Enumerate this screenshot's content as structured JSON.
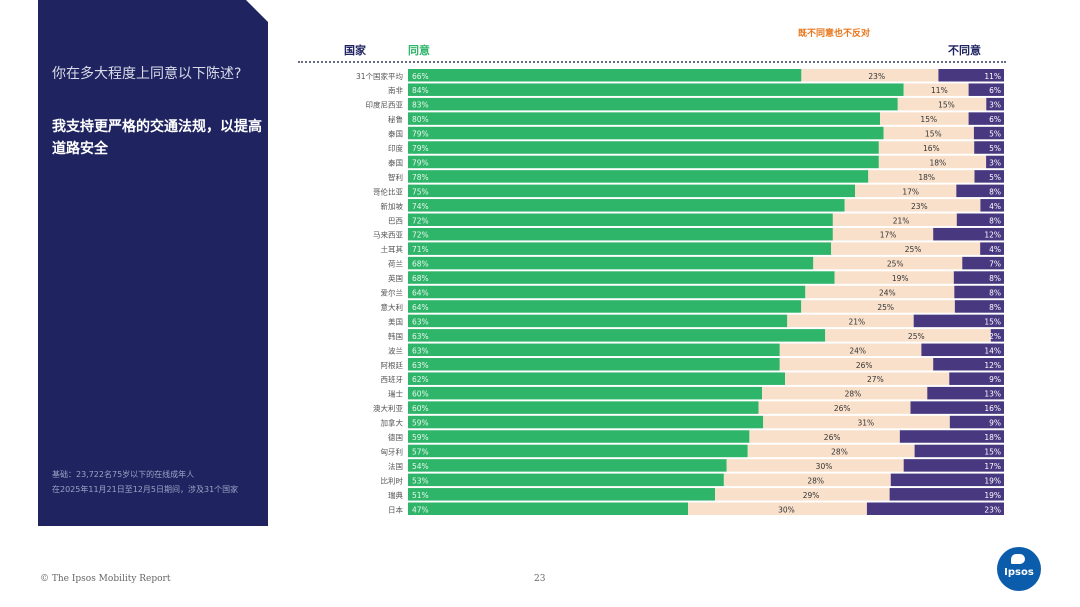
{
  "panel": {
    "question": "你在多大程度上同意以下陈述?",
    "statement": "我支持更严格的交通法规，以提高道路安全",
    "base_line1": "基础：23,722名75岁以下的在线成年人",
    "base_line2": "在2025年11月21日至12月5日期间，涉及31个国家"
  },
  "headers": {
    "country": "国家",
    "agree": "同意",
    "neutral": "既不同意也不反对",
    "disagree": "不同意"
  },
  "footer": {
    "copyright": "© The Ipsos Mobility Report",
    "page": "23"
  },
  "logo": {
    "text": "Ipsos"
  },
  "colors": {
    "agree": "#2fb56a",
    "neutral": "#f9e0cb",
    "disagree": "#473880",
    "panel": "#1f2461",
    "accent_orange": "#e8771d"
  },
  "chart_data": {
    "type": "bar",
    "stacked": true,
    "horizontal": true,
    "categories": [
      "31个国家平均",
      "南非",
      "印度尼西亚",
      "秘鲁",
      "泰国",
      "印度",
      "泰国",
      "智利",
      "哥伦比亚",
      "新加坡",
      "巴西",
      "马来西亚",
      "土耳其",
      "荷兰",
      "英国",
      "爱尔兰",
      "意大利",
      "美国",
      "韩国",
      "波兰",
      "阿根廷",
      "西班牙",
      "瑞士",
      "澳大利亚",
      "加拿大",
      "德国",
      "匈牙利",
      "法国",
      "比利时",
      "瑞典",
      "日本"
    ],
    "series": [
      {
        "name": "同意",
        "values": [
          66,
          84,
          83,
          80,
          79,
          79,
          79,
          78,
          75,
          74,
          72,
          72,
          71,
          68,
          68,
          64,
          64,
          63,
          63,
          63,
          63,
          62,
          60,
          60,
          59,
          59,
          57,
          54,
          53,
          51,
          47
        ]
      },
      {
        "name": "既不同意也不反对",
        "values": [
          23,
          11,
          15,
          15,
          15,
          16,
          18,
          18,
          17,
          23,
          21,
          17,
          25,
          25,
          19,
          24,
          25,
          21,
          25,
          24,
          26,
          27,
          28,
          26,
          31,
          26,
          28,
          30,
          28,
          29,
          30
        ]
      },
      {
        "name": "不同意",
        "values": [
          11,
          6,
          3,
          6,
          5,
          5,
          3,
          5,
          8,
          4,
          8,
          12,
          4,
          7,
          8,
          8,
          8,
          15,
          2,
          14,
          12,
          9,
          13,
          16,
          9,
          18,
          15,
          17,
          19,
          19,
          23
        ]
      }
    ],
    "value_labels": {
      "agree": [
        "66%",
        "84%",
        "83%",
        "80%",
        "79%",
        "79%",
        "79%",
        "78%",
        "75%",
        "74%",
        "72%",
        "72%",
        "71%",
        "68%",
        "68%",
        "64%",
        "64%",
        "63%",
        "63%",
        "63%",
        "63%",
        "62%",
        "60%",
        "60%",
        "59%",
        "59%",
        "57%",
        "54%",
        "53%",
        "51%",
        "47%"
      ],
      "neutral": [
        "23%",
        "11%",
        "15%",
        "15%",
        "15%",
        "16%",
        "18%",
        "18%",
        "17%",
        "23%",
        "21%",
        "17%",
        "25%",
        "25%",
        "19%",
        "24%",
        "25%",
        "21%",
        "25%",
        "24%",
        "26%",
        "27%",
        "28%",
        "26%",
        "31%",
        "26%",
        "28%",
        "30%",
        "28%",
        "29%",
        "30%"
      ],
      "disagree": [
        "11%",
        "6%",
        "3%",
        "6%",
        "5%",
        "5%",
        "3%",
        "5%",
        "8%",
        "4%",
        "8%",
        "12%",
        "4%",
        "7%",
        "8%",
        "8%",
        "8%",
        "15%",
        "2%",
        "14%",
        "12%",
        "9%",
        "13%",
        "16%",
        "9%",
        "18%",
        "15%",
        "17%",
        "19%",
        "19%",
        "23%"
      ]
    },
    "title": "我支持更严格的交通法规，以提高道路安全",
    "xlabel": "",
    "ylabel": "国家",
    "xlim": [
      0,
      100
    ],
    "legend": "top"
  }
}
